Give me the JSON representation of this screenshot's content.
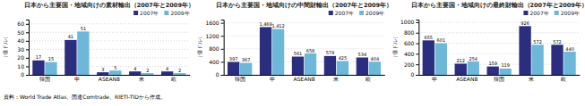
{
  "chart_data": [
    {
      "type": "bar",
      "title": "日本から主要国・地域向けの素材輸出（2007年と2009年）",
      "ylabel": "（億ドル）",
      "categories": [
        "韓国",
        "中",
        "ASEAN8",
        "米",
        "欧"
      ],
      "series": [
        {
          "name": "2007年",
          "color": "#2B2D7E",
          "values": [
            17,
            41,
            3,
            4,
            4
          ]
        },
        {
          "name": "2009年",
          "color": "#6DB8D8",
          "values": [
            15,
            51,
            5,
            2,
            2
          ]
        }
      ],
      "ylim": [
        0,
        65
      ],
      "yticks": [
        0,
        10,
        20,
        30,
        40,
        50,
        60
      ],
      "grid": true,
      "legend": "top-right",
      "data_labels": true
    },
    {
      "type": "bar",
      "title": "日本から主要国・地域向けの中間財輸出（2007年と2009年）",
      "ylabel": "（億ドル）",
      "categories": [
        "韓国",
        "中",
        "ASEAN8",
        "米",
        "欧"
      ],
      "series": [
        {
          "name": "2007年",
          "color": "#2B2D7E",
          "values": [
            397,
            1469,
            561,
            579,
            534
          ],
          "value_labels": [
            "397",
            "1,469",
            "561",
            "579",
            "534"
          ]
        },
        {
          "name": "2009年",
          "color": "#6DB8D8",
          "values": [
            367,
            1412,
            658,
            425,
            404
          ],
          "value_labels": [
            "367",
            "1,412",
            "658",
            "425",
            "404"
          ]
        }
      ],
      "ylim": [
        0,
        1700
      ],
      "yticks": [
        0,
        400,
        800,
        1200,
        1600
      ],
      "grid": true,
      "legend": "top-right",
      "data_labels": true
    },
    {
      "type": "bar",
      "title": "日本から主要国・地域向けの最終財輸出（2007年と2009年）",
      "ylabel": "（億ドル）",
      "categories": [
        "中",
        "ASEAN8",
        "韓国",
        "米",
        "欧"
      ],
      "series": [
        {
          "name": "2007年",
          "color": "#2B2D7E",
          "values": [
            655,
            212,
            159,
            926,
            572
          ]
        },
        {
          "name": "2009年",
          "color": "#6DB8D8",
          "values": [
            601,
            254,
            119,
            572,
            440
          ]
        }
      ],
      "ylim": [
        0,
        1050
      ],
      "yticks": [
        0,
        200,
        400,
        600,
        800,
        1000
      ],
      "grid": true,
      "legend": "top-right",
      "data_labels": true
    }
  ],
  "footnote": "資料：World Trade Atlas、国連Comtrade、RIETI-TIDから作成。"
}
